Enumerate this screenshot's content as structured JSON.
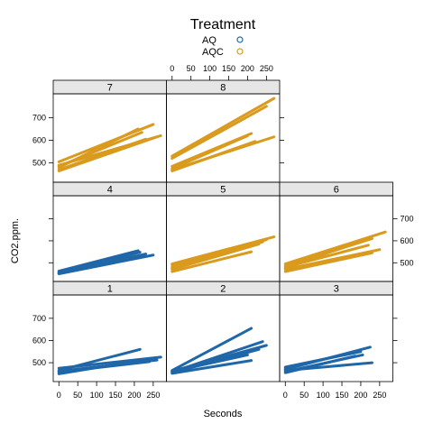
{
  "chart_data": {
    "type": "line",
    "legend": {
      "title": "Treatment",
      "entries": [
        {
          "label": "AQ",
          "color": "#1f67a9"
        },
        {
          "label": "AQC",
          "color": "#d99a1e"
        }
      ],
      "placement": "top"
    },
    "xlabel": "Seconds",
    "ylabel": "CO2.ppm.",
    "xlim": [
      -15,
      285
    ],
    "ylim": [
      415,
      805
    ],
    "xticks": [
      0,
      50,
      100,
      150,
      200,
      250
    ],
    "yticks": [
      500,
      600,
      700
    ],
    "panels": [
      {
        "label": "1",
        "row": 0,
        "col": 0,
        "treatment": "AQ",
        "series": [
          [
            0,
            450,
            250,
            520
          ],
          [
            0,
            458,
            240,
            505
          ],
          [
            0,
            465,
            215,
            560
          ],
          [
            0,
            475,
            270,
            525
          ],
          [
            0,
            455,
            230,
            510
          ],
          [
            0,
            462,
            260,
            512
          ]
        ]
      },
      {
        "label": "2",
        "row": 0,
        "col": 1,
        "treatment": "AQ",
        "series": [
          [
            0,
            465,
            210,
            655
          ],
          [
            0,
            458,
            240,
            595
          ],
          [
            0,
            455,
            230,
            560
          ],
          [
            0,
            460,
            200,
            535
          ],
          [
            0,
            452,
            210,
            510
          ],
          [
            0,
            462,
            250,
            578
          ]
        ]
      },
      {
        "label": "3",
        "row": 0,
        "col": 2,
        "treatment": "AQ",
        "series": [
          [
            0,
            470,
            225,
            570
          ],
          [
            0,
            480,
            200,
            550
          ],
          [
            0,
            465,
            230,
            500
          ],
          [
            0,
            460,
            205,
            535
          ],
          [
            0,
            455,
            185,
            530
          ],
          [
            0,
            475,
            175,
            545
          ]
        ]
      },
      {
        "label": "4",
        "row": 1,
        "col": 0,
        "treatment": "AQ",
        "series": [
          [
            0,
            462,
            210,
            555
          ],
          [
            0,
            455,
            230,
            540
          ],
          [
            0,
            450,
            250,
            535
          ],
          [
            0,
            458,
            200,
            520
          ],
          [
            0,
            452,
            215,
            548
          ]
        ]
      },
      {
        "label": "5",
        "row": 1,
        "col": 1,
        "treatment": "AQC",
        "series": [
          [
            0,
            495,
            270,
            618
          ],
          [
            0,
            480,
            250,
            605
          ],
          [
            0,
            470,
            230,
            585
          ],
          [
            0,
            460,
            210,
            550
          ],
          [
            0,
            490,
            240,
            595
          ],
          [
            0,
            475,
            200,
            585
          ]
        ]
      },
      {
        "label": "6",
        "row": 1,
        "col": 2,
        "treatment": "AQC",
        "series": [
          [
            0,
            495,
            265,
            640
          ],
          [
            0,
            485,
            230,
            610
          ],
          [
            0,
            475,
            210,
            605
          ],
          [
            0,
            470,
            250,
            560
          ],
          [
            0,
            460,
            230,
            545
          ],
          [
            0,
            480,
            220,
            580
          ]
        ]
      },
      {
        "label": "7",
        "row": 2,
        "col": 0,
        "treatment": "AQC",
        "series": [
          [
            0,
            505,
            250,
            670
          ],
          [
            0,
            490,
            270,
            620
          ],
          [
            0,
            480,
            210,
            650
          ],
          [
            0,
            470,
            230,
            605
          ],
          [
            0,
            465,
            260,
            615
          ],
          [
            0,
            485,
            220,
            635
          ]
        ]
      },
      {
        "label": "8",
        "row": 2,
        "col": 1,
        "treatment": "AQC",
        "series": [
          [
            0,
            530,
            270,
            785
          ],
          [
            0,
            520,
            250,
            750
          ],
          [
            0,
            485,
            210,
            630
          ],
          [
            0,
            470,
            270,
            615
          ],
          [
            0,
            465,
            220,
            595
          ],
          [
            0,
            475,
            200,
            620
          ]
        ]
      }
    ]
  }
}
